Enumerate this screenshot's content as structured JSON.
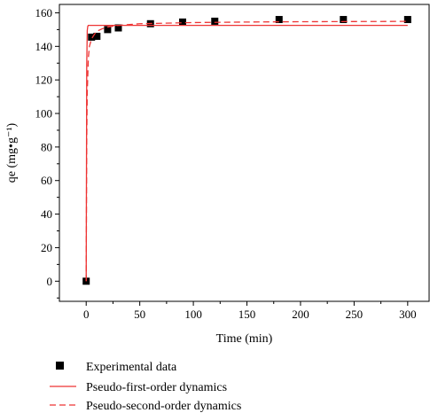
{
  "chart_data": {
    "type": "scatter",
    "title": "",
    "xlabel": "Time (min)",
    "ylabel": "qe (mg•g⁻¹)",
    "xlim": [
      -25,
      320
    ],
    "ylim": [
      -12,
      165
    ],
    "x_ticks": [
      0,
      50,
      100,
      150,
      200,
      250,
      300
    ],
    "y_ticks": [
      0,
      20,
      40,
      60,
      80,
      100,
      120,
      140,
      160
    ],
    "grid": false,
    "legend_position": "bottom",
    "colors": {
      "marker": "#000000",
      "fit": "#ee3333"
    },
    "series": [
      {
        "name": "Experimental data",
        "kind": "markers",
        "x": [
          0,
          5,
          10,
          20,
          30,
          60,
          90,
          120,
          180,
          240,
          300
        ],
        "y": [
          0,
          145.5,
          146,
          150,
          151,
          153.5,
          154.5,
          155,
          156,
          156,
          156
        ]
      },
      {
        "name": "Pseudo-first-order dynamics",
        "kind": "solid-line",
        "x": [
          0,
          0.5,
          1,
          1.5,
          2,
          3,
          5,
          10,
          20,
          50,
          100,
          200,
          300
        ],
        "y": [
          0,
          129,
          149.5,
          152,
          152.5,
          152.5,
          152.5,
          152.5,
          152.5,
          152.5,
          152.5,
          152.5,
          152.5
        ]
      },
      {
        "name": "Pseudo-second-order dynamics",
        "kind": "dashed-line",
        "x": [
          0,
          0.5,
          1,
          2,
          3,
          5,
          8,
          10,
          15,
          20,
          30,
          50,
          100,
          150,
          200,
          250,
          300
        ],
        "y": [
          0,
          84,
          113,
          133,
          140,
          144.5,
          147.5,
          149,
          150.5,
          151.5,
          152.5,
          153.5,
          154.2,
          154.5,
          154.7,
          154.8,
          154.9
        ]
      }
    ]
  }
}
